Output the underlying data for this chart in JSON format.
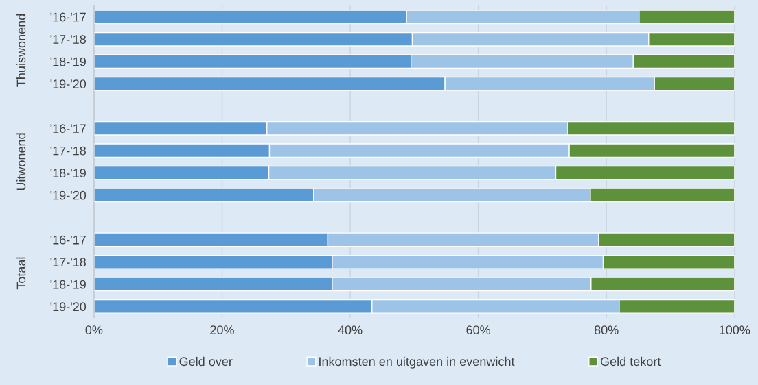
{
  "chart_data": {
    "type": "bar",
    "orientation": "horizontal",
    "stacked": true,
    "categories": [
      "'16-'17",
      "'17-'18",
      "'18-'19",
      "'19-'20",
      null,
      "'16-'17",
      "'17-'18",
      "'18-'19",
      "'19-'20",
      null,
      "'16-'17",
      "'17-'18",
      "'18-'19",
      "'19-'20"
    ],
    "series": [
      {
        "name": "Geld over",
        "color": "#5b9bd5",
        "values": [
          48.8,
          49.7,
          49.5,
          54.8,
          null,
          27.0,
          27.4,
          27.3,
          34.3,
          null,
          36.5,
          37.2,
          37.2,
          43.4
        ]
      },
      {
        "name": "Inkomsten en uitgaven in evenwicht",
        "color": "#9dc3e6",
        "values": [
          36.3,
          36.9,
          34.7,
          32.7,
          null,
          47.0,
          46.8,
          44.8,
          43.2,
          null,
          42.3,
          42.3,
          40.4,
          38.6
        ]
      },
      {
        "name": "Geld tekort",
        "color": "#5e913b",
        "values": [
          14.9,
          13.4,
          15.8,
          12.5,
          null,
          26.0,
          25.8,
          27.9,
          22.5,
          null,
          21.2,
          20.5,
          22.4,
          18.0
        ]
      }
    ],
    "annotations": [
      "Thuiswonend",
      "Uitwonend",
      "Totaal"
    ],
    "xlim": [
      0,
      100
    ],
    "xticks": [
      {
        "value": 0,
        "label": "0%"
      },
      {
        "value": 20,
        "label": "20%"
      },
      {
        "value": 40,
        "label": "40%"
      },
      {
        "value": 60,
        "label": "60%"
      },
      {
        "value": 80,
        "label": "80%"
      },
      {
        "value": 100,
        "label": "100%"
      }
    ],
    "grid": "x",
    "legend": "bottom"
  }
}
